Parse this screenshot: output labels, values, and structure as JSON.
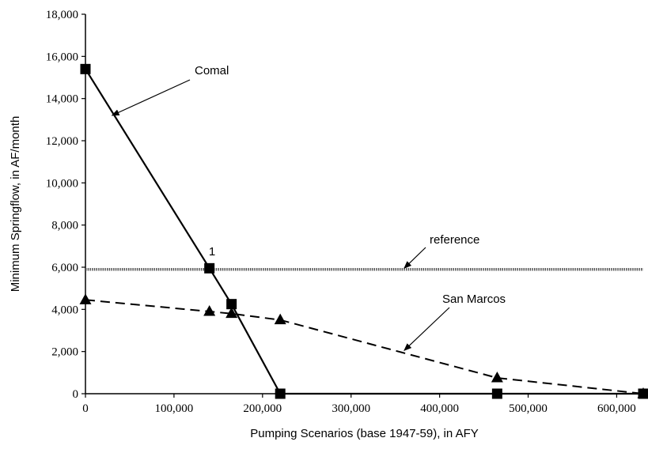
{
  "chart_data": {
    "type": "line",
    "title": "",
    "xlabel": "Pumping Scenarios (base 1947-59), in AFY",
    "ylabel": "Minimum Springflow, in AF/month",
    "xlim": [
      0,
      630000
    ],
    "ylim": [
      0,
      18000
    ],
    "x_ticks": [
      "0",
      "100,000",
      "200,000",
      "300,000",
      "400,000",
      "500,000",
      "600,000"
    ],
    "x_tick_values": [
      0,
      100000,
      200000,
      300000,
      400000,
      500000,
      600000
    ],
    "y_ticks": [
      "0",
      "2,000",
      "4,000",
      "6,000",
      "8,000",
      "10,000",
      "12,000",
      "14,000",
      "16,000",
      "18,000"
    ],
    "y_tick_values": [
      0,
      2000,
      4000,
      6000,
      8000,
      10000,
      12000,
      14000,
      16000,
      18000
    ],
    "grid": false,
    "series": [
      {
        "name": "Comal",
        "marker": "square",
        "line": "solid",
        "x": [
          0,
          140000,
          165000,
          220000,
          465000,
          630000
        ],
        "y": [
          15400,
          5950,
          4250,
          0,
          0,
          0
        ]
      },
      {
        "name": "San Marcos",
        "marker": "triangle",
        "line": "dashed",
        "x": [
          0,
          140000,
          165000,
          220000,
          465000,
          630000
        ],
        "y": [
          4450,
          3900,
          3800,
          3500,
          750,
          0
        ]
      },
      {
        "name": "reference",
        "marker": "none",
        "line": "dotted",
        "x": [
          0,
          630000
        ],
        "y": [
          5900,
          5900
        ]
      }
    ],
    "annotations": [
      {
        "text": "Comal",
        "arrow_to": {
          "x": 30000,
          "y": 13200
        }
      },
      {
        "text": "reference",
        "arrow_to": {
          "x": 360000,
          "y": 5950
        }
      },
      {
        "text": "San Marcos",
        "arrow_to": {
          "x": 360000,
          "y": 2050
        }
      },
      {
        "text": "1",
        "near": {
          "x": 140000,
          "y": 5950
        }
      }
    ]
  }
}
